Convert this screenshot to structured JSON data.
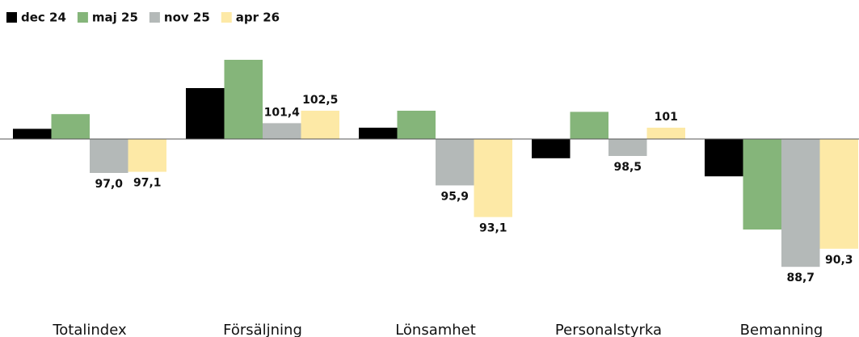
{
  "chart_data": {
    "type": "bar",
    "categories": [
      "Totalindex",
      "Försäljning",
      "Lönsamhet",
      "Personalstyrka",
      "Bemanning"
    ],
    "baseline": 100,
    "ylim": [
      86,
      108
    ],
    "series": [
      {
        "name": "dec 24",
        "color": "#000000",
        "values": [
          100.9,
          104.5,
          101.0,
          98.3,
          96.7
        ]
      },
      {
        "name": "maj 25",
        "color": "#85b57a",
        "values": [
          102.2,
          107.0,
          102.5,
          102.4,
          92.0
        ]
      },
      {
        "name": "nov 25",
        "color": "#b4b9b8",
        "values": [
          97.0,
          101.4,
          95.9,
          98.5,
          88.7
        ],
        "value_labels": [
          "97,0",
          "101,4",
          "95,9",
          "98,5",
          "88,7"
        ]
      },
      {
        "name": "apr 26",
        "color": "#fde9a6",
        "values": [
          97.1,
          102.5,
          93.1,
          101,
          90.3
        ],
        "value_labels": [
          "97,1",
          "102,5",
          "93,1",
          "101",
          "90,3"
        ]
      }
    ]
  }
}
